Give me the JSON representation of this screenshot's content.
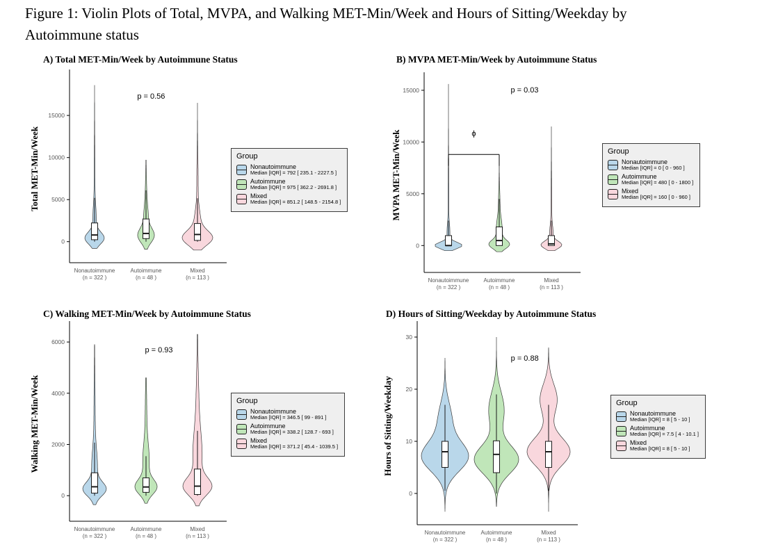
{
  "figure": {
    "title": "Figure 1: Violin Plots of Total, MVPA, and Walking MET-Min/Week and Hours of Sitting/Weekday by Autoimmune status"
  },
  "legend_title": "Group",
  "colors": {
    "nonautoimmune": "#b9d7ea",
    "autoimmune": "#c0e6b9",
    "mixed": "#f9d7dd",
    "violin_stroke": "#3a3a3a",
    "legend_bg": "#efefef"
  },
  "chart_data": [
    {
      "id": "A",
      "type": "violin",
      "title": "A) Total MET-Min/Week by Autoimmune Status",
      "ylabel": "Total MET-Min/Week",
      "yticks": [
        0,
        5000,
        10000,
        15000
      ],
      "ylim": [
        -2500,
        19800
      ],
      "p_value": "p = 0.56",
      "p_pos": {
        "x": 1.1,
        "y": 17000
      },
      "categories": [
        {
          "label": "Nonautoimmune",
          "n": "(n = 322 )",
          "group": "nonautoimmune",
          "legend_stat": "Median [IQR] = 792 [ 235.1 - 2227.5 ]",
          "box": {
            "median": 792,
            "q1": 235.1,
            "q3": 2227.5,
            "lo": 0,
            "hi": 5200
          },
          "violin": {
            "min": -800,
            "max": 18600,
            "hw": 14,
            "bumps": [
              {
                "c": 400,
                "s": 700,
                "a": 1
              },
              {
                "c": 2500,
                "s": 1800,
                "a": 0.18
              },
              {
                "c": 8000,
                "s": 4000,
                "a": 0.04
              }
            ]
          }
        },
        {
          "label": "Autoimmune",
          "n": "(n = 48 )",
          "group": "autoimmune",
          "legend_stat": "Median [IQR] = 975 [ 362.2 - 2691.8 ]",
          "box": {
            "median": 975,
            "q1": 362.2,
            "q3": 2691.8,
            "lo": 0,
            "hi": 6100
          },
          "violin": {
            "min": -900,
            "max": 9700,
            "hw": 12,
            "bumps": [
              {
                "c": 700,
                "s": 850,
                "a": 1
              },
              {
                "c": 2800,
                "s": 1500,
                "a": 0.28
              },
              {
                "c": 6000,
                "s": 2000,
                "a": 0.08
              }
            ]
          }
        },
        {
          "label": "Mixed",
          "n": "(n = 113 )",
          "group": "mixed",
          "legend_stat": "Median [IQR] = 851.2 [ 148.5 - 2154.8 ]",
          "box": {
            "median": 851.2,
            "q1": 148.5,
            "q3": 2154.8,
            "lo": 0,
            "hi": 5160
          },
          "violin": {
            "min": -1000,
            "max": 16500,
            "hw": 22,
            "bumps": [
              {
                "c": 400,
                "s": 850,
                "a": 1
              },
              {
                "c": 2200,
                "s": 1500,
                "a": 0.22
              },
              {
                "c": 7000,
                "s": 3000,
                "a": 0.05
              }
            ]
          }
        }
      ]
    },
    {
      "id": "B",
      "type": "violin",
      "title": "B) MVPA MET-Min/Week by Autoimmune Status",
      "ylabel": "MVPA MET-Min/Week",
      "yticks": [
        0,
        5000,
        10000,
        15000
      ],
      "ylim": [
        -2600,
        16200
      ],
      "p_value": "p = 0.03",
      "p_pos": {
        "x": 1.5,
        "y": 14800
      },
      "annotation": {
        "text": "ϕ",
        "x1": 0,
        "x2": 1,
        "y": 8800,
        "drop": 1100,
        "text_y": 10600
      },
      "categories": [
        {
          "label": "Nonautoimmune",
          "n": "(n = 322 )",
          "group": "nonautoimmune",
          "legend_stat": "Median [IQR] = 0 [ 0 - 960 ]",
          "box": {
            "median": 0,
            "q1": 0,
            "q3": 960,
            "lo": 0,
            "hi": 2400
          },
          "violin": {
            "min": -500,
            "max": 15600,
            "hw": 19,
            "bumps": [
              {
                "c": 0,
                "s": 300,
                "a": 1
              },
              {
                "c": 1200,
                "s": 900,
                "a": 0.1
              },
              {
                "c": 5000,
                "s": 3000,
                "a": 0.025
              }
            ]
          }
        },
        {
          "label": "Autoimmune",
          "n": "(n = 48 )",
          "group": "autoimmune",
          "legend_stat": "Median [IQR] = 480 [ 0 - 1800 ]",
          "box": {
            "median": 480,
            "q1": 0,
            "q3": 1800,
            "lo": 0,
            "hi": 4500
          },
          "violin": {
            "min": -600,
            "max": 7700,
            "hw": 15,
            "bumps": [
              {
                "c": 100,
                "s": 420,
                "a": 1
              },
              {
                "c": 1500,
                "s": 1000,
                "a": 0.3
              },
              {
                "c": 4000,
                "s": 1500,
                "a": 0.08
              }
            ]
          }
        },
        {
          "label": "Mixed",
          "n": "(n = 113 )",
          "group": "mixed",
          "legend_stat": "Median [IQR] = 160 [ 0 - 960 ]",
          "box": {
            "median": 160,
            "q1": 0,
            "q3": 960,
            "lo": 0,
            "hi": 2400
          },
          "violin": {
            "min": -500,
            "max": 11500,
            "hw": 15,
            "bumps": [
              {
                "c": 50,
                "s": 360,
                "a": 1
              },
              {
                "c": 1200,
                "s": 800,
                "a": 0.15
              },
              {
                "c": 4000,
                "s": 2500,
                "a": 0.04
              }
            ]
          }
        }
      ]
    },
    {
      "id": "C",
      "type": "violin",
      "title": "C) Walking MET-Min/Week by Autoimmune Status",
      "ylabel": "Walking MET-Min/Week",
      "yticks": [
        0,
        2000,
        4000,
        6000
      ],
      "ylim": [
        -1000,
        6600
      ],
      "p_value": "p = 0.93",
      "p_pos": {
        "x": 1.25,
        "y": 5600
      },
      "categories": [
        {
          "label": "Nonautoimmune",
          "n": "(n = 322 )",
          "group": "nonautoimmune",
          "legend_stat": "Median [IQR] = 346.5 [ 99 - 891 ]",
          "box": {
            "median": 346.5,
            "q1": 99,
            "q3": 891,
            "lo": 0,
            "hi": 2070
          },
          "violin": {
            "min": -350,
            "max": 5900,
            "hw": 17,
            "bumps": [
              {
                "c": 250,
                "s": 270,
                "a": 1
              },
              {
                "c": 1100,
                "s": 700,
                "a": 0.25
              },
              {
                "c": 3000,
                "s": 1500,
                "a": 0.06
              }
            ]
          }
        },
        {
          "label": "Autoimmune",
          "n": "(n = 48 )",
          "group": "autoimmune",
          "legend_stat": "Median [IQR] = 338.2 [ 128.7 - 693 ]",
          "box": {
            "median": 338.2,
            "q1": 128.7,
            "q3": 693,
            "lo": 0,
            "hi": 1540
          },
          "violin": {
            "min": -300,
            "max": 4600,
            "hw": 16,
            "bumps": [
              {
                "c": 330,
                "s": 290,
                "a": 1
              },
              {
                "c": 1300,
                "s": 700,
                "a": 0.3
              },
              {
                "c": 3000,
                "s": 1200,
                "a": 0.08
              }
            ]
          }
        },
        {
          "label": "Mixed",
          "n": "(n = 113 )",
          "group": "mixed",
          "legend_stat": "Median [IQR] = 371.2 [ 45.4 - 1039.5 ]",
          "box": {
            "median": 371.2,
            "q1": 45.4,
            "q3": 1039.5,
            "lo": 0,
            "hi": 2530
          },
          "violin": {
            "min": -400,
            "max": 6300,
            "hw": 21,
            "bumps": [
              {
                "c": 350,
                "s": 340,
                "a": 1
              },
              {
                "c": 1500,
                "s": 900,
                "a": 0.3
              },
              {
                "c": 3200,
                "s": 1500,
                "a": 0.12
              }
            ]
          }
        }
      ]
    },
    {
      "id": "D",
      "type": "violin",
      "title": "D) Hours of Sitting/Weekday by Autoimmune Status",
      "ylabel": "Hours of Sitting/Weekday",
      "yticks": [
        0,
        10,
        20,
        30
      ],
      "ylim": [
        -6,
        32
      ],
      "p_value": "p = 0.88",
      "p_pos": {
        "x": 1.55,
        "y": 25.5
      },
      "categories": [
        {
          "label": "Nonautoimmune",
          "n": "(n = 322 )",
          "group": "nonautoimmune",
          "legend_stat": "Median [IQR] = 8 [ 5 - 10 ]",
          "box": {
            "median": 8,
            "q1": 5,
            "q3": 10,
            "lo": 0.5,
            "hi": 17
          },
          "violin": {
            "min": -3.5,
            "max": 26,
            "hw": 34,
            "bumps": [
              {
                "c": 7,
                "s": 2.8,
                "a": 1
              },
              {
                "c": 14,
                "s": 3.5,
                "a": 0.3
              }
            ]
          }
        },
        {
          "label": "Autoimmune",
          "n": "(n = 48 )",
          "group": "autoimmune",
          "legend_stat": "Median [IQR] = 7.5 [ 4 - 10.1 ]",
          "box": {
            "median": 7.5,
            "q1": 4,
            "q3": 10.1,
            "lo": 0,
            "hi": 19
          },
          "violin": {
            "min": -2.5,
            "max": 30,
            "hw": 32,
            "bumps": [
              {
                "c": 6.5,
                "s": 2.7,
                "a": 1
              },
              {
                "c": 16,
                "s": 3.5,
                "a": 0.35
              }
            ]
          }
        },
        {
          "label": "Mixed",
          "n": "(n = 113 )",
          "group": "mixed",
          "legend_stat": "Median [IQR] = 8 [ 5 - 10 ]",
          "box": {
            "median": 8,
            "q1": 5,
            "q3": 10,
            "lo": 0.5,
            "hi": 17
          },
          "violin": {
            "min": -3.5,
            "max": 28,
            "hw": 31,
            "bumps": [
              {
                "c": 8,
                "s": 2.7,
                "a": 1
              },
              {
                "c": 18,
                "s": 3,
                "a": 0.4
              }
            ]
          }
        }
      ]
    }
  ]
}
